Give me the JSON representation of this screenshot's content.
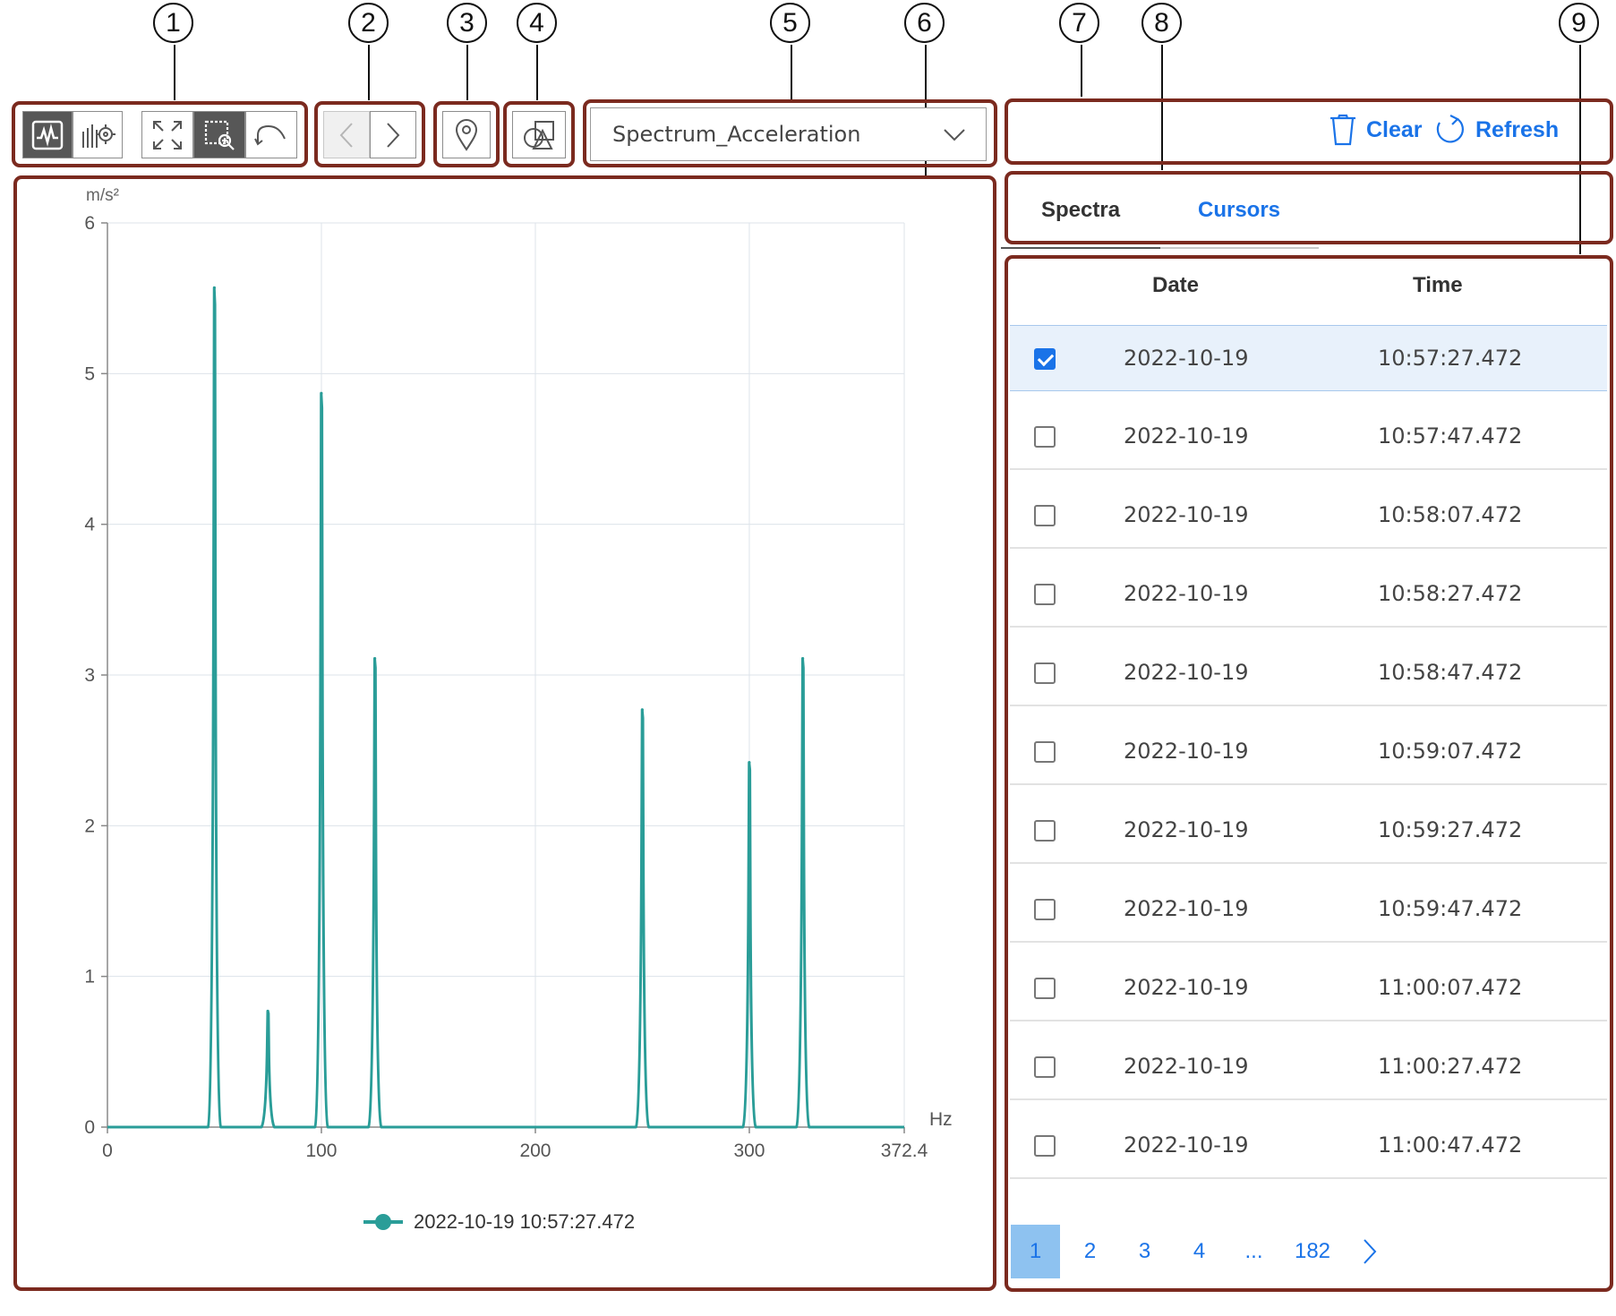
{
  "callouts": [
    "1",
    "2",
    "3",
    "4",
    "5",
    "6",
    "7",
    "8",
    "9"
  ],
  "toolbar": {
    "icons": [
      "waveform-view-icon",
      "chart-settings-icon",
      "fit-to-screen-icon",
      "zoom-area-icon",
      "undo-icon"
    ],
    "nav_icons": [
      "chevron-left-icon",
      "chevron-right-icon"
    ],
    "marker_icon": "map-pin-icon",
    "shapes_icon": "shapes-icon"
  },
  "dropdown": {
    "selected": "Spectrum_Acceleration"
  },
  "actions": {
    "clear_label": "Clear",
    "refresh_label": "Refresh"
  },
  "tabs": {
    "spectra": "Spectra",
    "cursors": "Cursors"
  },
  "table": {
    "columns": [
      "Date",
      "Time"
    ],
    "rows": [
      {
        "date": "2022-10-19",
        "time": "10:57:27.472",
        "checked": true
      },
      {
        "date": "2022-10-19",
        "time": "10:57:47.472",
        "checked": false
      },
      {
        "date": "2022-10-19",
        "time": "10:58:07.472",
        "checked": false
      },
      {
        "date": "2022-10-19",
        "time": "10:58:27.472",
        "checked": false
      },
      {
        "date": "2022-10-19",
        "time": "10:58:47.472",
        "checked": false
      },
      {
        "date": "2022-10-19",
        "time": "10:59:07.472",
        "checked": false
      },
      {
        "date": "2022-10-19",
        "time": "10:59:27.472",
        "checked": false
      },
      {
        "date": "2022-10-19",
        "time": "10:59:47.472",
        "checked": false
      },
      {
        "date": "2022-10-19",
        "time": "11:00:07.472",
        "checked": false
      },
      {
        "date": "2022-10-19",
        "time": "11:00:27.472",
        "checked": false
      },
      {
        "date": "2022-10-19",
        "time": "11:00:47.472",
        "checked": false
      }
    ]
  },
  "pagination": {
    "pages": [
      "1",
      "2",
      "3",
      "4",
      "...",
      "182"
    ],
    "current": "1"
  },
  "colors": {
    "series": "#2a9d98",
    "accent": "#1a73e8",
    "frame": "#7b2a1f"
  },
  "chart_data": {
    "type": "line",
    "ylabel": "m/s²",
    "xlabel": "Hz",
    "xlim": [
      0,
      372.4
    ],
    "ylim": [
      0,
      6
    ],
    "x_ticks": [
      "0",
      "100",
      "200",
      "300",
      "372.4"
    ],
    "y_ticks": [
      "0",
      "1",
      "2",
      "3",
      "4",
      "5",
      "6"
    ],
    "grid": true,
    "legend_position": "bottom",
    "series": [
      {
        "name": "2022-10-19 10:57:27.472",
        "peaks": [
          {
            "x": 50,
            "y": 5.57
          },
          {
            "x": 75,
            "y": 0.77
          },
          {
            "x": 100,
            "y": 4.87
          },
          {
            "x": 125,
            "y": 3.11
          },
          {
            "x": 250,
            "y": 2.77
          },
          {
            "x": 300,
            "y": 2.42
          },
          {
            "x": 325,
            "y": 3.11
          }
        ]
      }
    ]
  }
}
